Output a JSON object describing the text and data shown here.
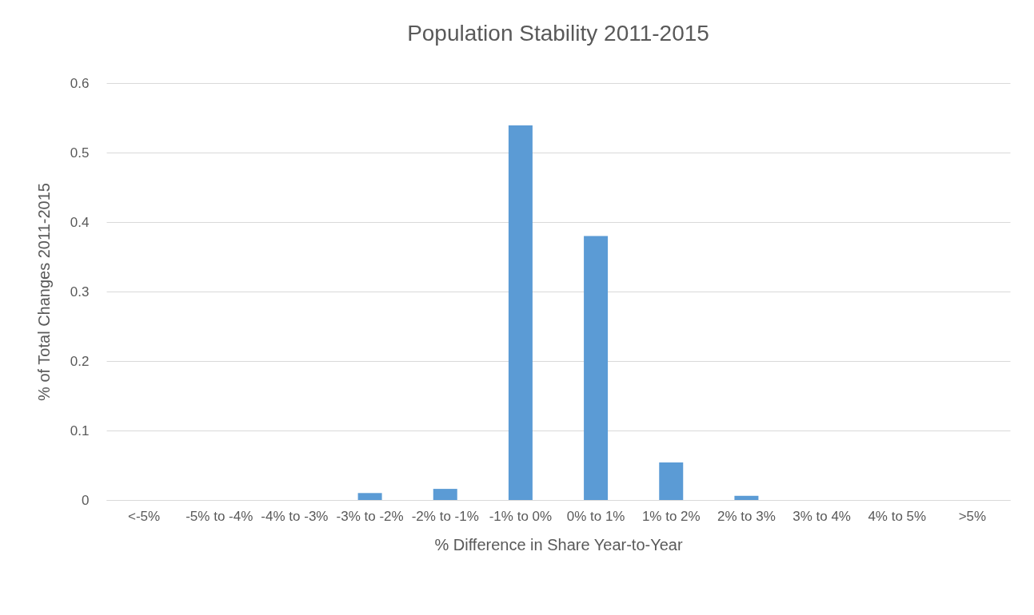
{
  "chart_data": {
    "type": "bar",
    "title": "Population Stability 2011-2015",
    "xlabel": "% Difference in Share Year-to-Year",
    "ylabel": "% of Total Changes 2011-2015",
    "categories": [
      "<-5%",
      "-5% to -4%",
      "-4% to -3%",
      "-3% to -2%",
      "-2% to -1%",
      "-1% to 0%",
      "0% to 1%",
      "1% to 2%",
      "2% to 3%",
      "3% to 4%",
      "4% to 5%",
      ">5%"
    ],
    "values": [
      0,
      0,
      0,
      0.01,
      0.016,
      0.539,
      0.38,
      0.054,
      0.006,
      0,
      0,
      0
    ],
    "color": "#5b9bd5",
    "ylim": [
      0,
      0.6
    ],
    "yticks": [
      0,
      0.1,
      0.2,
      0.3,
      0.4,
      0.5,
      0.6
    ],
    "grid": "y"
  }
}
